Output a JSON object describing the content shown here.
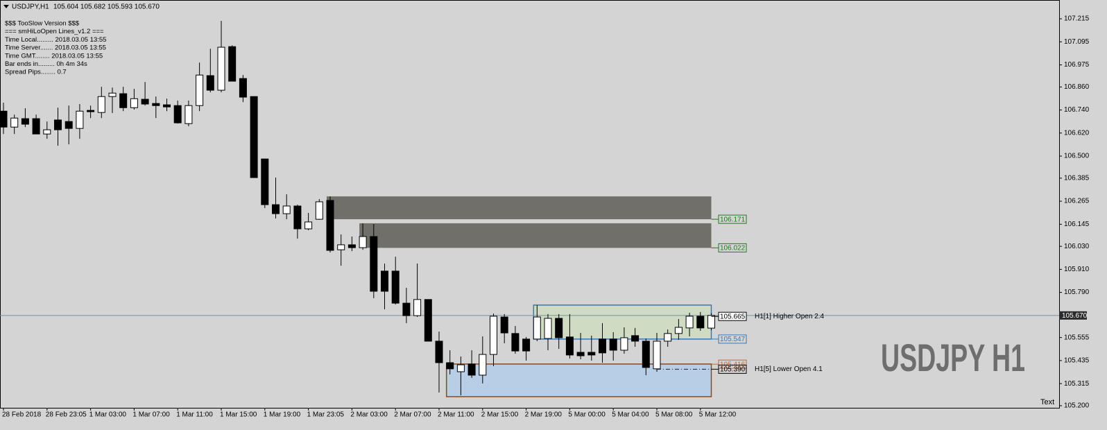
{
  "header": {
    "symbol": "USDJPY,H1",
    "ohlc": "105.604 105.682 105.593 105.670"
  },
  "info_lines": [
    "$$$ TooSlow Version $$$",
    "=== smHiLoOpen Lines_v1.2 ===",
    "Time Local......... 2018.03.05 13:55",
    "Time Server....... 2018.03.05 13:55",
    "Time GMT........ 2018.03.05 13:55",
    "Bar ends in......... 0h 4m 34s",
    "Spread Pips........ 0.7"
  ],
  "watermark": "USDJPY H1",
  "corner_text": "Text",
  "chart_data": {
    "type": "candlestick",
    "up_color": "#ffffff",
    "down_color": "#000000",
    "categories": [
      "28 Feb 2018",
      null,
      null,
      null,
      "28 Feb 23:05",
      null,
      null,
      null,
      "1 Mar 03:00",
      null,
      null,
      null,
      "1 Mar 07:00",
      null,
      null,
      null,
      "1 Mar 11:00",
      null,
      null,
      null,
      "1 Mar 15:00",
      null,
      null,
      null,
      "1 Mar 19:00",
      null,
      null,
      null,
      "1 Mar 23:05",
      null,
      null,
      null,
      "2 Mar 03:00",
      null,
      null,
      null,
      "2 Mar 07:00",
      null,
      null,
      null,
      "2 Mar 11:00",
      null,
      null,
      null,
      "2 Mar 15:00",
      null,
      null,
      null,
      "2 Mar 19:00",
      null,
      null,
      null,
      "5 Mar 00:00",
      null,
      null,
      null,
      "5 Mar 04:00",
      null,
      null,
      null,
      "5 Mar 08:00",
      null,
      null,
      null,
      "5 Mar 12:00",
      null
    ],
    "open": [
      106.734,
      106.651,
      106.695,
      106.695,
      106.615,
      106.688,
      106.68,
      106.644,
      106.738,
      106.727,
      106.81,
      106.825,
      106.752,
      106.796,
      106.774,
      106.767,
      106.763,
      106.669,
      106.763,
      106.919,
      106.843,
      107.07,
      106.904,
      106.81,
      106.485,
      106.247,
      106.2,
      106.24,
      106.121,
      106.171,
      106.269,
      106.012,
      106.038,
      106.023,
      106.081,
      105.901,
      105.901,
      105.734,
      105.669,
      105.753,
      105.536,
      105.424,
      105.377,
      105.417,
      105.359,
      105.467,
      105.662,
      105.576,
      105.547,
      105.547,
      105.55,
      105.655,
      105.558,
      105.478,
      105.478,
      105.547,
      105.547,
      105.489,
      105.565,
      105.536,
      105.392,
      105.536,
      105.576,
      105.605,
      105.666,
      105.604
    ],
    "high": [
      106.778,
      106.716,
      106.749,
      106.716,
      106.68,
      106.752,
      106.763,
      106.771,
      106.763,
      106.861,
      106.857,
      106.861,
      106.85,
      106.886,
      106.81,
      106.799,
      106.789,
      106.789,
      106.987,
      107.059,
      107.204,
      107.077,
      106.922,
      106.81,
      106.485,
      106.388,
      106.301,
      106.247,
      106.204,
      106.276,
      106.29,
      106.092,
      106.081,
      106.15,
      106.146,
      105.94,
      105.976,
      105.814,
      105.94,
      105.753,
      105.586,
      105.489,
      105.456,
      105.489,
      105.561,
      105.68,
      105.677,
      105.615,
      105.558,
      105.724,
      105.677,
      105.677,
      105.677,
      105.579,
      105.565,
      105.63,
      105.583,
      105.608,
      105.605,
      105.55,
      105.579,
      105.597,
      105.651,
      105.684,
      105.688,
      105.682
    ],
    "low": [
      106.615,
      106.615,
      106.651,
      106.615,
      106.59,
      106.554,
      106.561,
      106.59,
      106.698,
      106.698,
      106.724,
      106.734,
      106.742,
      106.763,
      106.698,
      106.734,
      106.669,
      106.655,
      106.734,
      106.832,
      106.832,
      106.89,
      106.781,
      106.388,
      106.229,
      106.175,
      106.171,
      106.07,
      106.114,
      106.168,
      105.998,
      105.929,
      106.005,
      106.012,
      105.76,
      105.702,
      105.727,
      105.63,
      105.662,
      105.536,
      105.269,
      105.363,
      105.254,
      105.345,
      105.316,
      105.406,
      105.525,
      105.471,
      105.435,
      105.536,
      105.489,
      105.496,
      105.446,
      105.442,
      105.435,
      105.424,
      105.435,
      105.471,
      105.507,
      105.359,
      105.377,
      105.507,
      105.543,
      105.561,
      105.59,
      105.593
    ],
    "close": [
      106.651,
      106.698,
      106.666,
      106.615,
      106.637,
      106.637,
      106.644,
      106.734,
      106.731,
      106.81,
      106.828,
      106.752,
      106.799,
      106.771,
      106.763,
      106.756,
      106.673,
      106.763,
      106.922,
      106.843,
      107.067,
      106.89,
      106.807,
      106.388,
      106.247,
      106.2,
      106.24,
      106.121,
      106.157,
      106.262,
      106.009,
      106.038,
      106.023,
      106.081,
      105.796,
      105.796,
      105.734,
      105.669,
      105.753,
      105.536,
      105.424,
      105.392,
      105.413,
      105.359,
      105.467,
      105.666,
      105.579,
      105.485,
      105.485,
      105.662,
      105.655,
      105.554,
      105.464,
      105.46,
      105.464,
      105.475,
      105.489,
      105.554,
      105.536,
      105.399,
      105.536,
      105.576,
      105.608,
      105.666,
      105.605,
      105.67
    ],
    "ylim": [
      105.189,
      107.302
    ],
    "yticks": [
      107.215,
      107.095,
      106.975,
      {
        "value": 106.86,
        "label": "106.860"
      },
      {
        "value": 106.74,
        "label": "106.740"
      },
      {
        "value": 106.62,
        "label": "106.620"
      },
      {
        "value": 106.5,
        "label": "106.500"
      },
      106.385,
      106.265,
      106.145,
      {
        "value": 106.03,
        "label": "106.030"
      },
      {
        "value": 105.91,
        "label": "105.910"
      },
      {
        "value": 105.79,
        "label": "105.790"
      },
      105.555,
      105.435,
      105.315,
      {
        "value": 105.2,
        "label": "105.200"
      }
    ],
    "grid": false,
    "current_price": {
      "value": 105.67,
      "label": "105.670"
    },
    "zones": [
      {
        "start": 30,
        "end": 65,
        "top": 106.29,
        "bottom": 106.171,
        "fill": "#706f69",
        "levels": [
          {
            "value": 106.171,
            "color": "#1e7a1e"
          }
        ]
      },
      {
        "start": 33,
        "end": 65,
        "top": 106.15,
        "bottom": 106.022,
        "fill": "#706f69",
        "levels": [
          {
            "value": 106.022,
            "color": "#1e7a1e"
          }
        ]
      },
      {
        "start": 49,
        "end": 65,
        "top": 105.724,
        "bottom": 105.547,
        "fill": "#cfdcc3",
        "stroke": "#3c78b5",
        "levels": [
          {
            "value": 105.665,
            "color": "#000000",
            "bg": "#ffffff",
            "note": "H1[1] Higher Open 2.4"
          },
          {
            "value": 105.547,
            "color": "#3c78b5"
          }
        ]
      },
      {
        "start": 41,
        "end": 65,
        "top": 105.417,
        "bottom": 105.247,
        "fill": "#b8cde6",
        "stroke": "#8a4a1e",
        "levels": [
          {
            "value": 105.416,
            "color": "#c0643a"
          },
          {
            "value": 105.39,
            "label": "105.390",
            "color": "#000000",
            "note": "H1[5] Lower Open 4.1",
            "dashed": true
          }
        ]
      }
    ]
  }
}
